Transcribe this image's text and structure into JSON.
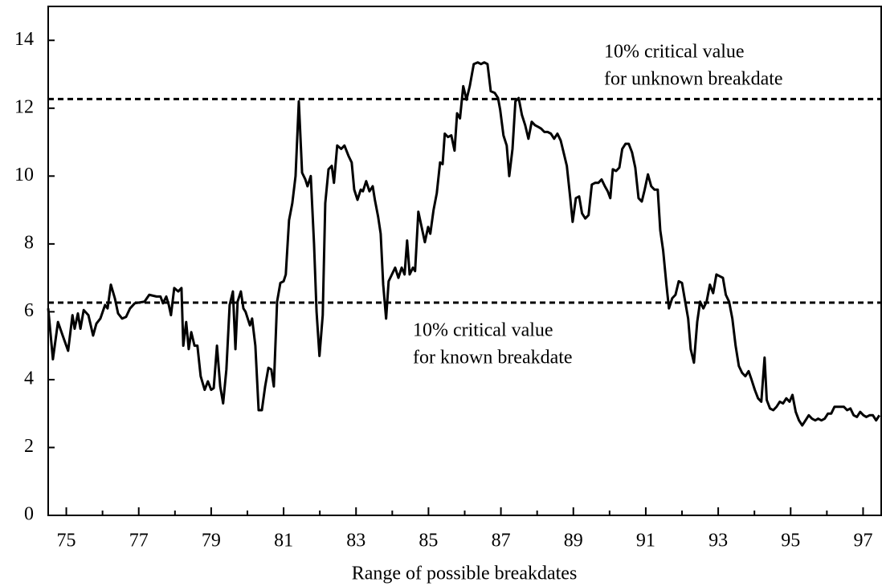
{
  "chart_data": {
    "type": "line",
    "x_label": "Range of possible breakdates",
    "xlim": [
      74.5,
      97.5
    ],
    "ylim": [
      0,
      15
    ],
    "xticks": [
      75,
      77,
      79,
      81,
      83,
      85,
      87,
      89,
      91,
      93,
      95,
      97
    ],
    "xminor_ticks": [
      76,
      78,
      80,
      82,
      84,
      86,
      88,
      90,
      92,
      94,
      96
    ],
    "yticks": [
      0,
      2,
      4,
      6,
      8,
      10,
      12,
      14
    ],
    "reference_lines": [
      12.27,
      6.27
    ],
    "annotations": [
      [
        "10% critical value",
        "for unknown breakdate"
      ],
      [
        "10% critical value",
        "for known breakdate"
      ]
    ],
    "color": "#000000",
    "x": [
      74.5,
      74.63,
      74.77,
      74.9,
      75.05,
      75.17,
      75.23,
      75.32,
      75.39,
      75.48,
      75.61,
      75.74,
      75.83,
      75.94,
      76.07,
      76.14,
      76.23,
      76.34,
      76.43,
      76.54,
      76.65,
      76.76,
      76.89,
      77.16,
      77.29,
      77.49,
      77.6,
      77.67,
      77.76,
      77.83,
      77.89,
      77.98,
      78.09,
      78.18,
      78.23,
      78.31,
      78.38,
      78.45,
      78.54,
      78.62,
      78.71,
      78.82,
      78.91,
      79.0,
      79.07,
      79.16,
      79.25,
      79.33,
      79.42,
      79.51,
      79.6,
      79.67,
      79.73,
      79.82,
      79.89,
      79.95,
      80.07,
      80.13,
      80.22,
      80.31,
      80.4,
      80.49,
      80.58,
      80.66,
      80.73,
      80.82,
      80.91,
      81.0,
      81.06,
      81.15,
      81.24,
      81.33,
      81.42,
      81.51,
      81.6,
      81.66,
      81.75,
      81.84,
      81.91,
      81.99,
      82.08,
      82.15,
      82.24,
      82.33,
      82.39,
      82.48,
      82.59,
      82.68,
      82.79,
      82.88,
      82.95,
      83.04,
      83.13,
      83.19,
      83.28,
      83.37,
      83.46,
      83.52,
      83.61,
      83.68,
      83.75,
      83.83,
      83.9,
      83.99,
      84.08,
      84.17,
      84.26,
      84.34,
      84.41,
      84.48,
      84.57,
      84.63,
      84.72,
      84.81,
      84.9,
      84.99,
      85.05,
      85.14,
      85.23,
      85.32,
      85.39,
      85.45,
      85.54,
      85.63,
      85.72,
      85.79,
      85.87,
      85.96,
      86.05,
      86.14,
      86.25,
      86.36,
      86.45,
      86.54,
      86.63,
      86.72,
      86.83,
      86.92,
      86.98,
      87.07,
      87.16,
      87.23,
      87.32,
      87.4,
      87.49,
      87.58,
      87.67,
      87.76,
      87.85,
      87.94,
      88.03,
      88.11,
      88.2,
      88.29,
      88.38,
      88.47,
      88.56,
      88.65,
      88.73,
      88.82,
      88.91,
      88.98,
      89.07,
      89.16,
      89.24,
      89.33,
      89.42,
      89.51,
      89.6,
      89.69,
      89.78,
      89.87,
      89.95,
      90.02,
      90.09,
      90.18,
      90.27,
      90.35,
      90.44,
      90.53,
      90.62,
      90.71,
      90.8,
      90.89,
      90.97,
      91.06,
      91.15,
      91.24,
      91.33,
      91.4,
      91.48,
      91.57,
      91.64,
      91.73,
      91.82,
      91.91,
      92.0,
      92.08,
      92.17,
      92.24,
      92.33,
      92.42,
      92.5,
      92.59,
      92.68,
      92.77,
      92.86,
      92.95,
      93.04,
      93.13,
      93.21,
      93.3,
      93.39,
      93.48,
      93.57,
      93.66,
      93.75,
      93.84,
      93.92,
      94.01,
      94.1,
      94.19,
      94.28,
      94.34,
      94.43,
      94.52,
      94.61,
      94.7,
      94.79,
      94.88,
      94.97,
      95.05,
      95.14,
      95.23,
      95.32,
      95.41,
      95.5,
      95.59,
      95.68,
      95.76,
      95.85,
      95.94,
      96.03,
      96.12,
      96.21,
      96.3,
      96.38,
      96.47,
      96.56,
      96.65,
      96.74,
      96.83,
      96.92,
      97.01,
      97.09,
      97.18,
      97.27,
      97.36,
      97.45
    ],
    "values": [
      6.1,
      4.6,
      5.7,
      5.3,
      4.85,
      5.9,
      5.5,
      5.95,
      5.5,
      6.05,
      5.9,
      5.3,
      5.65,
      5.8,
      6.2,
      6.1,
      6.8,
      6.4,
      5.95,
      5.8,
      5.85,
      6.1,
      6.25,
      6.3,
      6.5,
      6.45,
      6.45,
      6.25,
      6.45,
      6.2,
      5.9,
      6.7,
      6.6,
      6.7,
      5.0,
      5.7,
      4.9,
      5.4,
      5.0,
      5.0,
      4.1,
      3.7,
      3.95,
      3.7,
      3.75,
      5.0,
      3.8,
      3.3,
      4.3,
      6.2,
      6.6,
      4.9,
      6.3,
      6.6,
      6.1,
      6.0,
      5.6,
      5.8,
      5.0,
      3.1,
      3.1,
      3.8,
      4.35,
      4.3,
      3.8,
      6.3,
      6.85,
      6.9,
      7.1,
      8.7,
      9.2,
      10.0,
      12.2,
      10.1,
      9.9,
      9.7,
      10.0,
      8.0,
      6.0,
      4.7,
      5.9,
      9.2,
      10.2,
      10.3,
      9.8,
      10.9,
      10.8,
      10.9,
      10.6,
      10.4,
      9.6,
      9.3,
      9.6,
      9.55,
      9.85,
      9.55,
      9.7,
      9.3,
      8.8,
      8.3,
      6.8,
      5.8,
      6.9,
      7.1,
      7.3,
      7.0,
      7.3,
      7.1,
      8.1,
      7.1,
      7.3,
      7.2,
      8.95,
      8.5,
      8.05,
      8.5,
      8.3,
      9.0,
      9.5,
      10.4,
      10.35,
      11.25,
      11.15,
      11.2,
      10.75,
      11.85,
      11.7,
      12.65,
      12.25,
      12.65,
      13.3,
      13.35,
      13.3,
      13.35,
      13.3,
      12.5,
      12.45,
      12.3,
      11.95,
      11.2,
      10.9,
      10.0,
      10.8,
      12.2,
      12.3,
      11.8,
      11.5,
      11.1,
      11.6,
      11.5,
      11.45,
      11.4,
      11.3,
      11.3,
      11.25,
      11.1,
      11.25,
      11.05,
      10.7,
      10.3,
      9.4,
      8.65,
      9.35,
      9.4,
      8.9,
      8.75,
      8.85,
      9.75,
      9.8,
      9.8,
      9.9,
      9.7,
      9.55,
      9.35,
      10.2,
      10.15,
      10.25,
      10.8,
      10.95,
      10.95,
      10.7,
      10.25,
      9.35,
      9.25,
      9.6,
      10.05,
      9.7,
      9.6,
      9.6,
      8.4,
      7.8,
      6.8,
      6.1,
      6.4,
      6.5,
      6.9,
      6.85,
      6.35,
      5.8,
      4.9,
      4.5,
      5.7,
      6.3,
      6.1,
      6.3,
      6.8,
      6.55,
      7.1,
      7.05,
      7.0,
      6.5,
      6.3,
      5.8,
      5.0,
      4.4,
      4.2,
      4.1,
      4.25,
      4.0,
      3.7,
      3.45,
      3.35,
      4.65,
      3.4,
      3.15,
      3.1,
      3.2,
      3.35,
      3.3,
      3.45,
      3.35,
      3.55,
      3.05,
      2.8,
      2.65,
      2.8,
      2.95,
      2.85,
      2.8,
      2.85,
      2.8,
      2.85,
      3.0,
      3.0,
      3.2,
      3.2,
      3.2,
      3.2,
      3.1,
      3.15,
      2.95,
      2.9,
      3.05,
      2.95,
      2.9,
      2.95,
      2.95,
      2.8,
      2.95
    ]
  }
}
